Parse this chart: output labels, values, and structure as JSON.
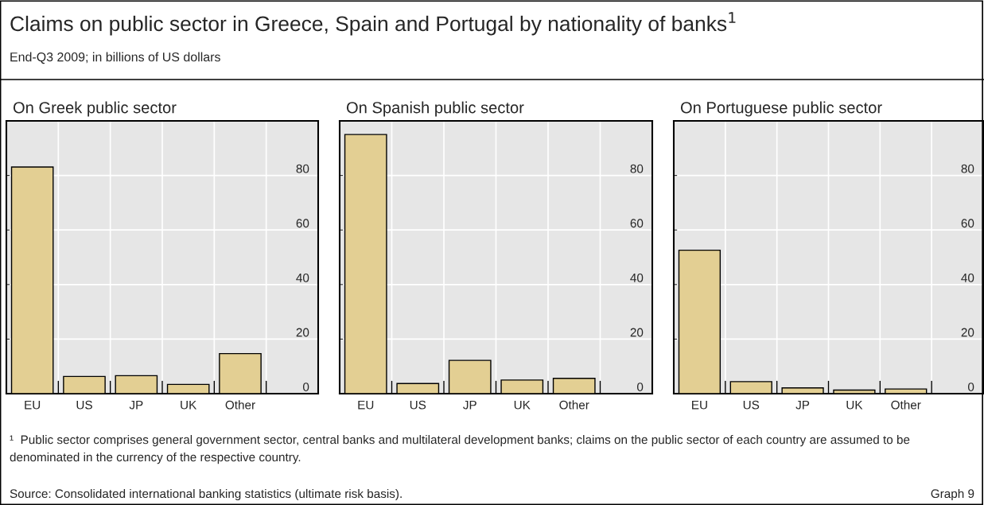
{
  "chart_data": [
    {
      "type": "other",
      "title": "Claims on public sector in Greece, Spain and Portugal by nationality of banks$^{1}$",
      "subtitle": "End-Q3 2009; in billions of US dollars",
      "annotations": [
        "¹  Public sector comprises general government sector, central banks and multilateral development banks; claims on the public sector of each country are assumed to be denominated in the currency of the respective country.",
        "Source: Consolidated international banking statistics (ultimate risk basis).",
        "Graph 9"
      ]
    },
    {
      "type": "bar",
      "title": "On Greek public sector",
      "categories": [
        "EU",
        "US",
        "JP",
        "UK",
        "Other"
      ],
      "values": [
        83.1,
        6.3,
        6.6,
        3.4,
        14.7
      ],
      "color": "#e3cf93",
      "ylim": [
        0,
        100
      ],
      "yticks": [
        0,
        20,
        40,
        60,
        80
      ],
      "grid": true
    },
    {
      "type": "bar",
      "title": "On Spanish public sector",
      "categories": [
        "EU",
        "US",
        "JP",
        "UK",
        "Other"
      ],
      "values": [
        95.0,
        3.7,
        12.2,
        5.0,
        5.6
      ],
      "color": "#e3cf93",
      "ylim": [
        0,
        100
      ],
      "yticks": [
        0,
        20,
        40,
        60,
        80
      ],
      "grid": true
    },
    {
      "type": "bar",
      "title": "On Portuguese public sector",
      "categories": [
        "EU",
        "US",
        "JP",
        "UK",
        "Other"
      ],
      "values": [
        52.6,
        4.4,
        2.1,
        1.3,
        1.7
      ],
      "color": "#e3cf93",
      "ylim": [
        0,
        100
      ],
      "yticks": [
        0,
        20,
        40,
        60,
        80
      ],
      "grid": true
    }
  ]
}
